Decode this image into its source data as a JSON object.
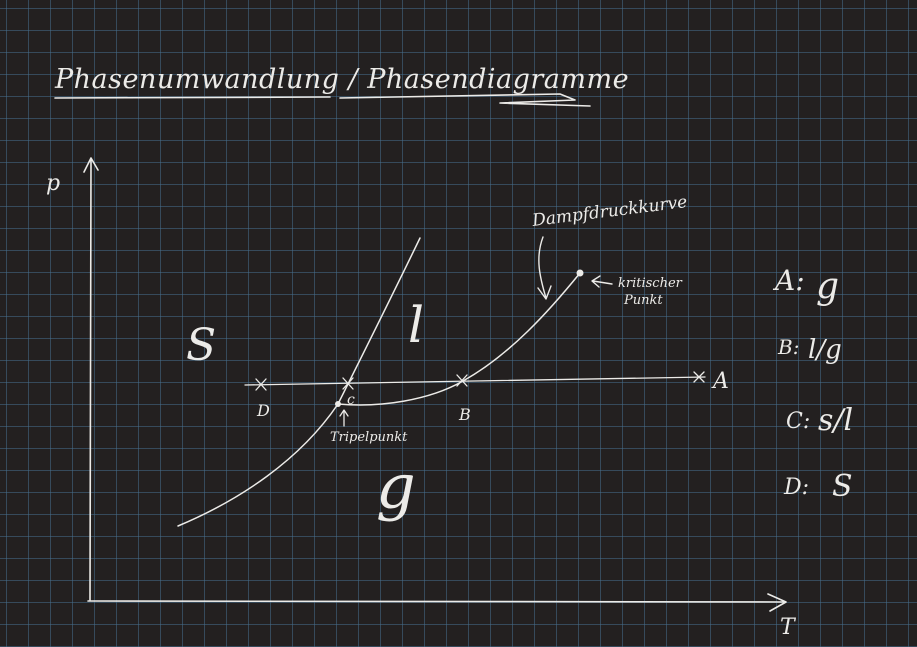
{
  "title": "Phasenumwandlung / Phasendiagramme",
  "axes": {
    "y": "p",
    "x": "T"
  },
  "regions": {
    "solid": "S",
    "liquid": "l",
    "gas": "g"
  },
  "curve_label": "Dampfdruckkurve",
  "critical_point_label": [
    "kritischer",
    "Punkt"
  ],
  "triple_point_label": "Tripelpunkt",
  "points": {
    "A": "A",
    "B": "B",
    "C": "c",
    "D": "D"
  },
  "legend": [
    {
      "key": "A:",
      "value": "g"
    },
    {
      "key": "B:",
      "value": "l/g"
    },
    {
      "key": "C:",
      "value": "s/l"
    },
    {
      "key": "D:",
      "value": "S"
    }
  ]
}
